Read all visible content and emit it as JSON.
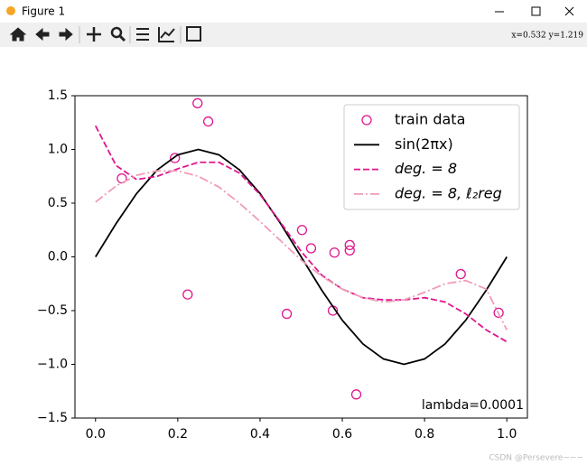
{
  "window": {
    "title": "Figure 1"
  },
  "toolbar": {
    "coordinates": "x=0.532 y=1.219"
  },
  "watermark": "CSDN @Persevere~~~",
  "chart_data": {
    "type": "line",
    "annotation": "lambda=0.0001",
    "xlim": [
      -0.05,
      1.05
    ],
    "ylim": [
      -1.5,
      1.5
    ],
    "xticks": [
      {
        "value": 0,
        "label": "0.0"
      },
      0.2,
      0.4,
      0.6,
      0.8,
      {
        "value": 1,
        "label": "1.0"
      }
    ],
    "yticks": [
      {
        "value": -1.5,
        "label": "−1.5"
      },
      {
        "value": -1,
        "label": "−1.0"
      },
      {
        "value": -0.5,
        "label": "−0.5"
      },
      {
        "value": 0,
        "label": "0.0"
      },
      0.5,
      {
        "value": 1,
        "label": "1.0"
      },
      1.5
    ],
    "legend": "upper right",
    "series": [
      {
        "name": "train data",
        "color": "#e0168e",
        "linestyle": "none",
        "marker": "o",
        "x": [
          0.064,
          0.193,
          0.248,
          0.274,
          0.224,
          0.465,
          0.502,
          0.524,
          0.577,
          0.581,
          0.618,
          0.618,
          0.634,
          0.888,
          0.98
        ],
        "values": [
          0.73,
          0.92,
          1.43,
          1.26,
          -0.35,
          -0.53,
          0.25,
          0.08,
          -0.5,
          0.04,
          0.11,
          0.06,
          -1.28,
          -0.16,
          -0.52
        ]
      },
      {
        "name": "sin(2πx)",
        "color": "#000000",
        "linestyle": "solid",
        "x": [
          0,
          0.05,
          0.1,
          0.15,
          0.2,
          0.25,
          0.3,
          0.35,
          0.4,
          0.45,
          0.5,
          0.55,
          0.6,
          0.65,
          0.7,
          0.75,
          0.8,
          0.85,
          0.9,
          0.95,
          1
        ],
        "values": [
          0,
          0.31,
          0.59,
          0.81,
          0.95,
          1,
          0.95,
          0.81,
          0.59,
          0.31,
          0,
          -0.31,
          -0.59,
          -0.81,
          -0.95,
          -1,
          -0.95,
          -0.81,
          -0.59,
          -0.31,
          0
        ]
      },
      {
        "name": "deg. = 8",
        "color": "#e0168e",
        "linestyle": "dashed",
        "x": [
          0,
          0.05,
          0.1,
          0.15,
          0.2,
          0.25,
          0.3,
          0.35,
          0.4,
          0.45,
          0.5,
          0.55,
          0.6,
          0.65,
          0.7,
          0.75,
          0.8,
          0.85,
          0.9,
          0.95,
          1
        ],
        "values": [
          1.22,
          0.85,
          0.72,
          0.75,
          0.82,
          0.88,
          0.88,
          0.78,
          0.58,
          0.32,
          0.05,
          -0.17,
          -0.3,
          -0.38,
          -0.4,
          -0.4,
          -0.38,
          -0.42,
          -0.53,
          -0.68,
          -0.79
        ]
      },
      {
        "name": "deg. = 8, ℓ₂reg",
        "color": "#f09cb6",
        "linestyle": "dashdot",
        "x": [
          0,
          0.05,
          0.1,
          0.15,
          0.2,
          0.25,
          0.3,
          0.35,
          0.4,
          0.45,
          0.5,
          0.55,
          0.6,
          0.65,
          0.7,
          0.75,
          0.8,
          0.85,
          0.9,
          0.95,
          1
        ],
        "values": [
          0.51,
          0.66,
          0.76,
          0.8,
          0.8,
          0.75,
          0.65,
          0.5,
          0.33,
          0.15,
          -0.03,
          -0.18,
          -0.3,
          -0.38,
          -0.42,
          -0.4,
          -0.33,
          -0.25,
          -0.22,
          -0.3,
          -0.68
        ]
      }
    ]
  }
}
